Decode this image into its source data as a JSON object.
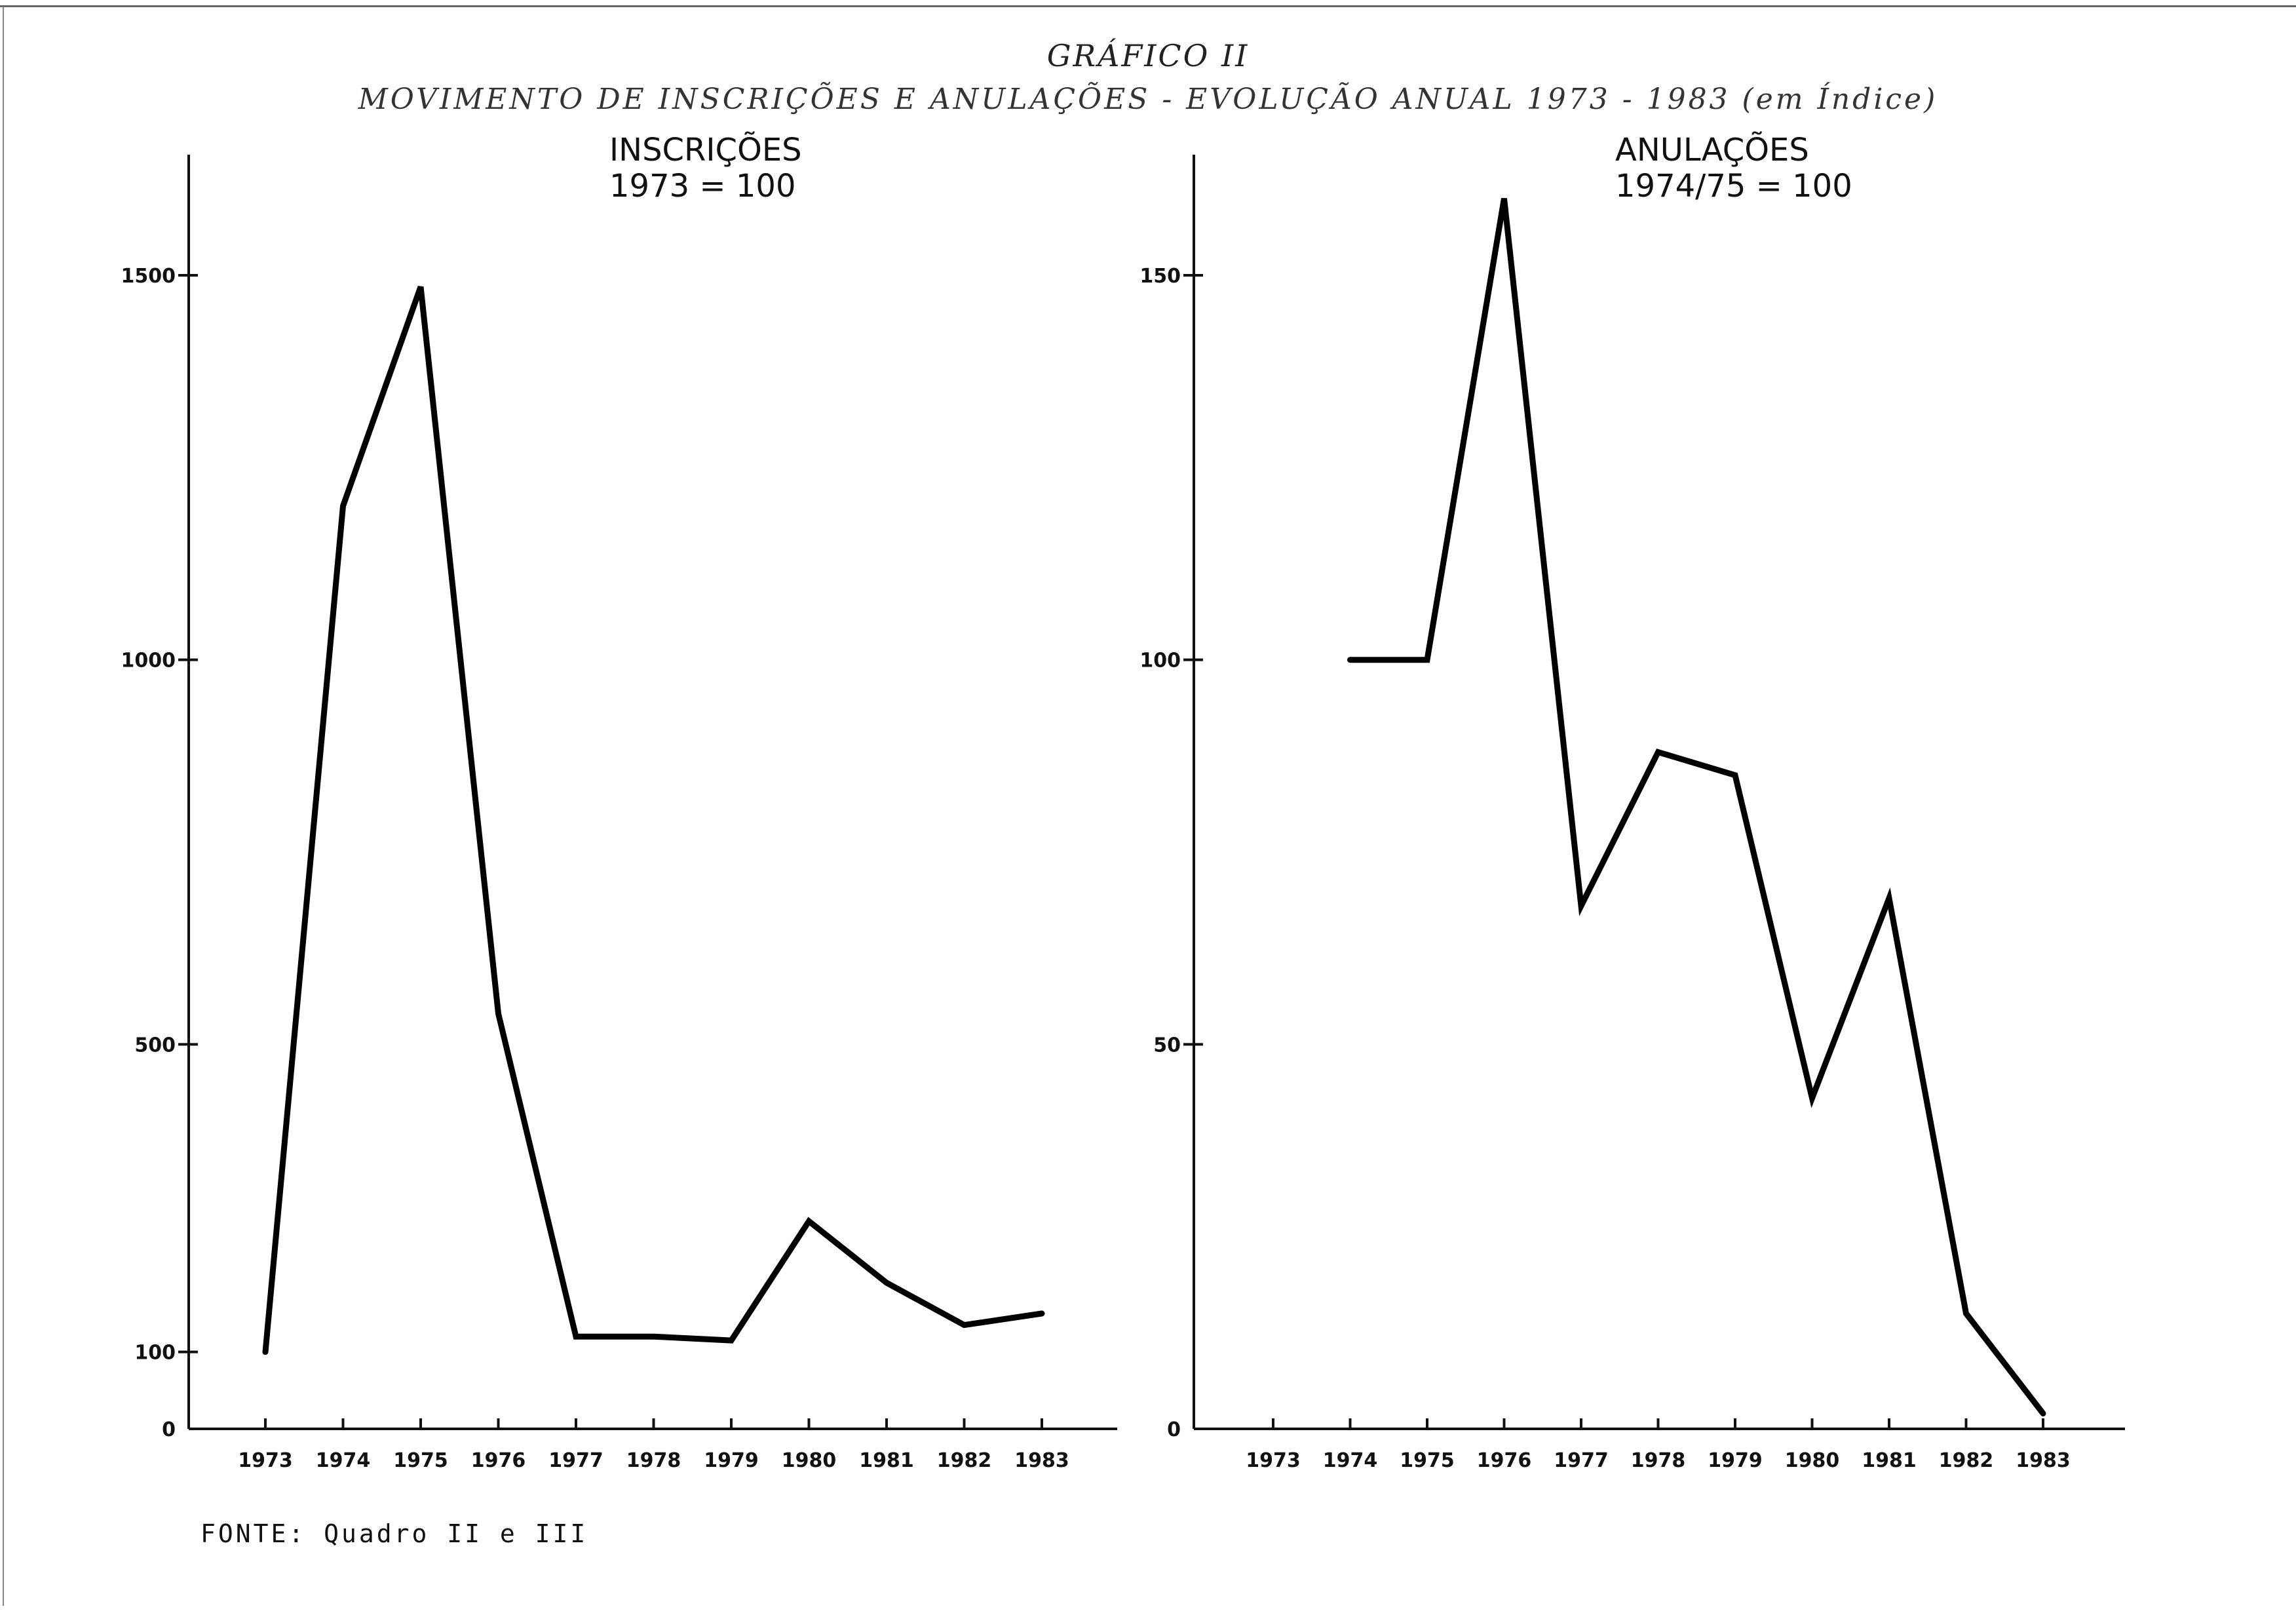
{
  "header": {
    "figure_label": "GRÁFICO II",
    "title": "MOVIMENTO DE INSCRIÇÕES E ANULAÇÕES - EVOLUÇÃO ANUAL 1973 - 1983 (em Índice)"
  },
  "footer": {
    "source": "FONTE: Quadro II e III"
  },
  "chart_data": [
    {
      "type": "line",
      "title": "INSCRIÇÕES",
      "subtitle": "1973  =  100",
      "categories": [
        "1973",
        "1974",
        "1975",
        "1976",
        "1977",
        "1978",
        "1979",
        "1980",
        "1981",
        "1982",
        "1983"
      ],
      "y_ticks": [
        0,
        100,
        500,
        1000,
        1500
      ],
      "ylim": [
        0,
        1650
      ],
      "series": [
        {
          "values": [
            100,
            1200,
            1485,
            540,
            120,
            120,
            115,
            270,
            190,
            135,
            150
          ]
        }
      ],
      "grid": false
    },
    {
      "type": "line",
      "title": "ANULAÇÕES",
      "subtitle": "1974/75 = 100",
      "categories": [
        "1973",
        "1974",
        "1975",
        "1976",
        "1977",
        "1978",
        "1979",
        "1980",
        "1981",
        "1982",
        "1983"
      ],
      "y_ticks": [
        0,
        50,
        100,
        150
      ],
      "ylim": [
        0,
        165
      ],
      "series": [
        {
          "values": [
            null,
            100,
            100,
            160,
            68,
            88,
            85,
            43,
            69,
            15,
            2
          ]
        }
      ],
      "grid": false
    }
  ]
}
